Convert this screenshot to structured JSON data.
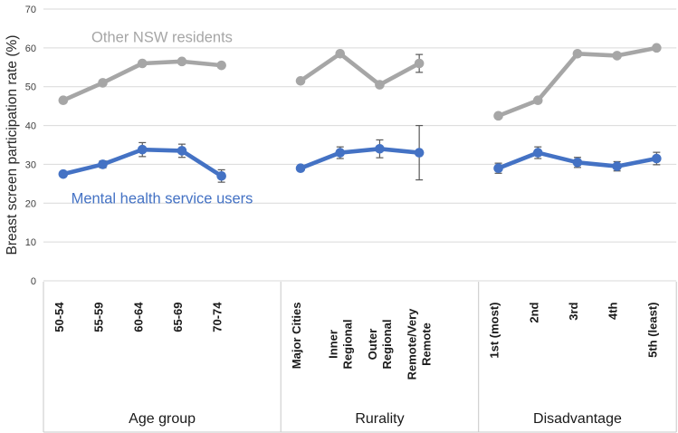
{
  "chart_data": {
    "type": "line",
    "title": "",
    "ylabel": "Breast screen participation rate (%)",
    "xlabel": "",
    "ylim": [
      0,
      70
    ],
    "yticks": [
      0,
      10,
      20,
      30,
      40,
      50,
      60,
      70
    ],
    "grid": true,
    "legend_position": "inline-labels",
    "groups": [
      {
        "label": "Age group",
        "categories": [
          "50-54",
          "55-59",
          "60-64",
          "65-69",
          "70-74"
        ]
      },
      {
        "label": "Rurality",
        "categories": [
          "Major Cities",
          "Inner Regional",
          "Outer Regional",
          "Remote/Very Remote"
        ]
      },
      {
        "label": "Disadvantage",
        "categories": [
          "1st (most)",
          "2nd",
          "3rd",
          "4th",
          "5th (least)"
        ]
      }
    ],
    "series": [
      {
        "name": "Other NSW residents",
        "color": "#A6A6A6",
        "values": [
          [
            46.5,
            51.0,
            56.0,
            56.5,
            55.5
          ],
          [
            51.5,
            58.5,
            50.5,
            56.0
          ],
          [
            42.5,
            46.5,
            58.5,
            58.0,
            60.0
          ]
        ],
        "errors": [
          [
            0,
            0,
            0,
            0,
            0
          ],
          [
            0,
            0,
            0,
            2.3
          ],
          [
            0,
            0,
            0,
            0,
            0
          ]
        ]
      },
      {
        "name": "Mental health service users",
        "color": "#4472C4",
        "values": [
          [
            27.5,
            30.0,
            33.8,
            33.5,
            27.0
          ],
          [
            29.0,
            33.0,
            34.0,
            33.0
          ],
          [
            29.0,
            33.0,
            30.5,
            29.5,
            31.5
          ]
        ],
        "errors": [
          [
            0,
            0.9,
            1.8,
            1.7,
            1.6
          ],
          [
            0,
            1.5,
            2.3,
            7.0
          ],
          [
            1.3,
            1.5,
            1.3,
            1.2,
            1.6
          ]
        ]
      }
    ],
    "style": {
      "gridline_color": "#D9D9D9",
      "axis_box_color": "#C8C8C8",
      "tick_label_color": "#404040",
      "category_label_color": "#1a1a1a",
      "error_bar_color": "#595959"
    }
  }
}
